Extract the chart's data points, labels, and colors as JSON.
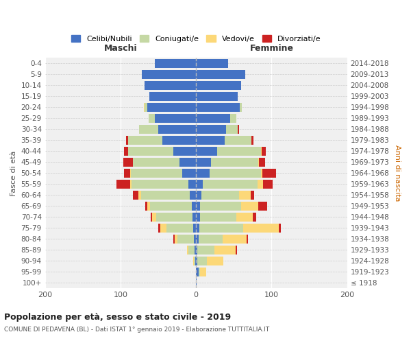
{
  "age_groups": [
    "100+",
    "95-99",
    "90-94",
    "85-89",
    "80-84",
    "75-79",
    "70-74",
    "65-69",
    "60-64",
    "55-59",
    "50-54",
    "45-49",
    "40-44",
    "35-39",
    "30-34",
    "25-29",
    "20-24",
    "15-19",
    "10-14",
    "5-9",
    "0-4"
  ],
  "birth_years": [
    "≤ 1918",
    "1919-1923",
    "1924-1928",
    "1929-1933",
    "1934-1938",
    "1939-1943",
    "1944-1948",
    "1949-1953",
    "1954-1958",
    "1959-1963",
    "1964-1968",
    "1969-1973",
    "1974-1978",
    "1979-1983",
    "1984-1988",
    "1989-1993",
    "1994-1998",
    "1999-2003",
    "2004-2008",
    "2009-2013",
    "2014-2018"
  ],
  "males": {
    "celibe": [
      0,
      0,
      1,
      2,
      3,
      4,
      5,
      6,
      8,
      10,
      18,
      22,
      30,
      45,
      50,
      55,
      65,
      62,
      68,
      72,
      55
    ],
    "coniugato": [
      0,
      0,
      2,
      8,
      22,
      35,
      48,
      55,
      65,
      75,
      68,
      62,
      60,
      45,
      25,
      8,
      3,
      0,
      0,
      0,
      0
    ],
    "vedovo": [
      0,
      0,
      1,
      2,
      3,
      8,
      5,
      4,
      3,
      2,
      1,
      0,
      0,
      0,
      0,
      0,
      1,
      0,
      0,
      0,
      0
    ],
    "divorziato": [
      0,
      0,
      0,
      0,
      2,
      3,
      2,
      2,
      8,
      18,
      8,
      12,
      5,
      3,
      0,
      0,
      0,
      0,
      0,
      0,
      0
    ]
  },
  "females": {
    "nubile": [
      1,
      3,
      2,
      2,
      3,
      4,
      5,
      5,
      7,
      9,
      18,
      20,
      28,
      38,
      40,
      45,
      58,
      55,
      60,
      65,
      42
    ],
    "coniugata": [
      0,
      2,
      12,
      22,
      32,
      58,
      48,
      55,
      50,
      72,
      68,
      62,
      58,
      35,
      15,
      8,
      3,
      0,
      0,
      0,
      0
    ],
    "vedova": [
      0,
      8,
      22,
      28,
      32,
      48,
      22,
      22,
      15,
      8,
      2,
      1,
      1,
      0,
      0,
      0,
      0,
      0,
      0,
      0,
      0
    ],
    "divorziata": [
      0,
      0,
      0,
      2,
      2,
      2,
      5,
      12,
      5,
      12,
      18,
      8,
      5,
      3,
      2,
      0,
      0,
      0,
      0,
      0,
      0
    ]
  },
  "colors": {
    "celibe": "#4472c4",
    "coniugato": "#c5d8a4",
    "vedovo": "#fcd878",
    "divorziato": "#cc2222"
  },
  "legend_labels": [
    "Celibi/Nubili",
    "Coniugati/e",
    "Vedovi/e",
    "Divorziati/e"
  ],
  "title": "Popolazione per età, sesso e stato civile - 2019",
  "subtitle": "COMUNE DI PEDAVENA (BL) - Dati ISTAT 1° gennaio 2019 - Elaborazione TUTTITALIA.IT",
  "xlabel_left": "Maschi",
  "xlabel_right": "Femmine",
  "ylabel_left": "Fasce di età",
  "ylabel_right": "Anni di nascita",
  "xlim": 200,
  "background_color": "#f0f0f0"
}
